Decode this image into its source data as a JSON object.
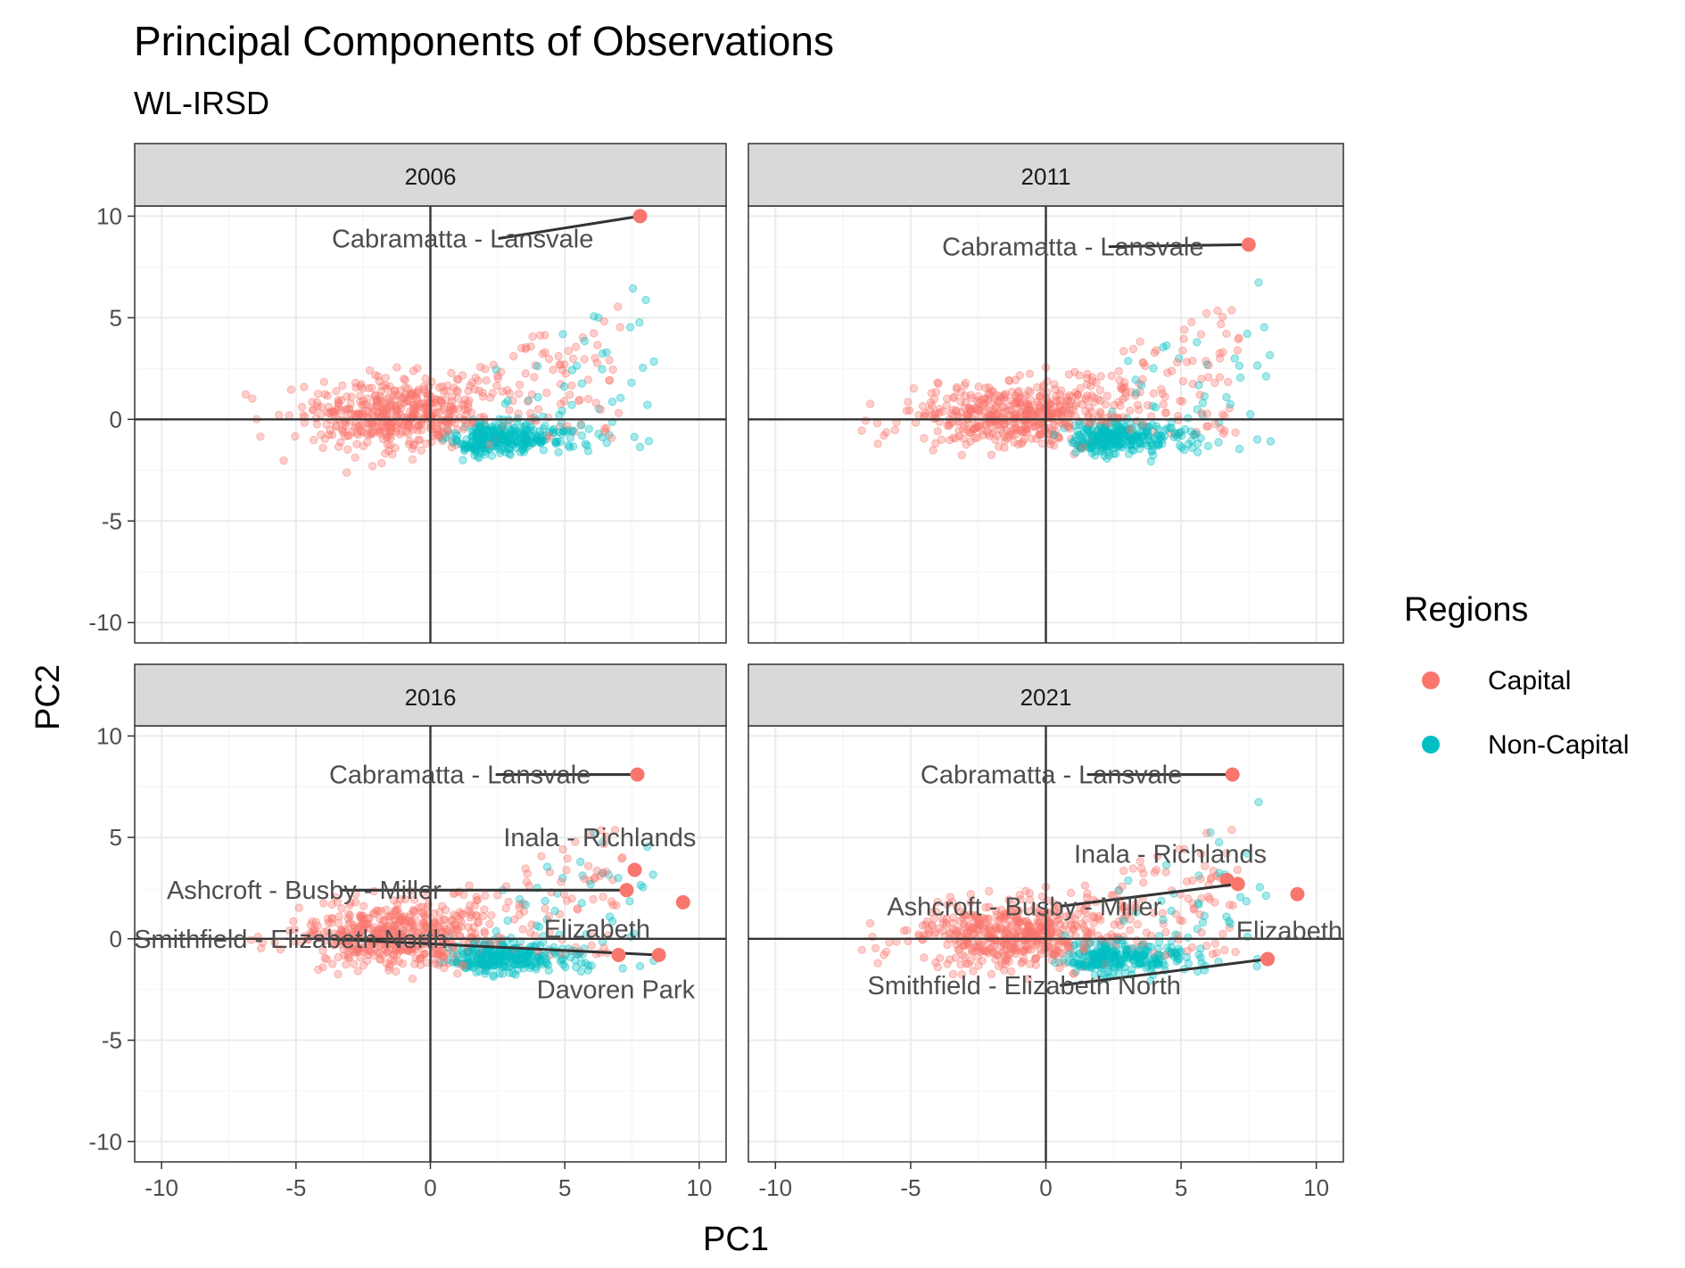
{
  "chart_data": {
    "type": "scatter",
    "title": "Principal Components of Observations",
    "subtitle": "WL-IRSD",
    "xlabel": "PC1",
    "ylabel": "PC2",
    "xlim": [
      -11,
      11
    ],
    "ylim": [
      -11,
      10.5
    ],
    "x_ticks": [
      -10,
      -5,
      0,
      5,
      10
    ],
    "y_ticks": [
      -10,
      -5,
      0,
      5,
      10
    ],
    "grid": true,
    "legend": {
      "title": "Regions",
      "placement": "right",
      "entries": [
        {
          "name": "Capital",
          "color": "#F8766D"
        },
        {
          "name": "Non-Capital",
          "color": "#00BFC4"
        }
      ]
    },
    "panels": [
      {
        "label": "2006",
        "highlights": [
          {
            "name": "Cabramatta - Lansvale",
            "x": 7.8,
            "y": 10.0,
            "label_x": 1.2,
            "label_y": 8.9
          }
        ]
      },
      {
        "label": "2011",
        "highlights": [
          {
            "name": "Cabramatta - Lansvale",
            "x": 7.5,
            "y": 8.6,
            "label_x": 1.0,
            "label_y": 8.5
          }
        ]
      },
      {
        "label": "2016",
        "highlights": [
          {
            "name": "Cabramatta - Lansvale",
            "x": 7.7,
            "y": 8.1,
            "label_x": 1.1,
            "label_y": 8.1
          },
          {
            "name": "Inala - Richlands",
            "x": 7.6,
            "y": 3.4,
            "label_x": 6.3,
            "label_y": 5.0
          },
          {
            "name": "Ashcroft - Busby - Miller",
            "x": 7.3,
            "y": 2.4,
            "label_x": -4.7,
            "label_y": 2.4
          },
          {
            "name": "Elizabeth",
            "x": 9.4,
            "y": 1.8,
            "label_x": 6.2,
            "label_y": 0.5
          },
          {
            "name": "Smithfield - Elizabeth North",
            "x": 8.5,
            "y": -0.8,
            "label_x": -5.2,
            "label_y": 0.0
          },
          {
            "name": "Davoren Park",
            "x": 7.0,
            "y": -0.8,
            "label_x": 6.9,
            "label_y": -2.5
          }
        ]
      },
      {
        "label": "2021",
        "highlights": [
          {
            "name": "Cabramatta - Lansvale",
            "x": 6.9,
            "y": 8.1,
            "label_x": 0.2,
            "label_y": 8.1
          },
          {
            "name": "Inala - Richlands",
            "x": 6.7,
            "y": 2.9,
            "label_x": 4.6,
            "label_y": 4.2
          },
          {
            "name": "Ashcroft - Busby - Miller",
            "x": 7.1,
            "y": 2.7,
            "label_x": -0.8,
            "label_y": 1.6
          },
          {
            "name": "Elizabeth",
            "x": 9.3,
            "y": 2.2,
            "label_x": 9.0,
            "label_y": 0.4
          },
          {
            "name": "Smithfield - Elizabeth North",
            "x": 8.2,
            "y": -1.0,
            "label_x": -0.8,
            "label_y": -2.3
          }
        ]
      }
    ],
    "point_cloud_note": "Hundreds of semi-transparent observations per panel; dense cluster centered near PC1 -1..2, PC2 -1..1. Capital points spread upward (PC2 up to ~6), Non-Capital points lie slightly lower (PC2 around -1) and extend to PC1 ~10."
  }
}
